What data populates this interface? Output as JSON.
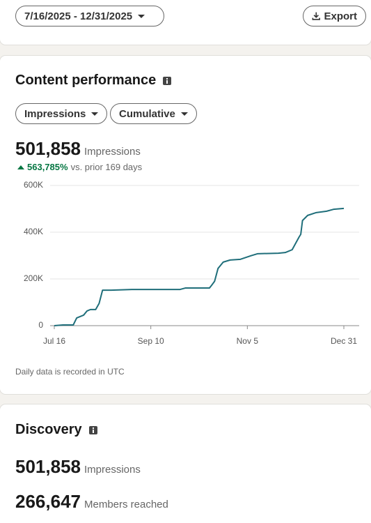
{
  "header": {
    "date_range": "7/16/2025 - 12/31/2025",
    "export": "Export"
  },
  "content_performance": {
    "title": "Content performance",
    "metric_dropdown": "Impressions",
    "mode_dropdown": "Cumulative",
    "total": "501,858",
    "total_label": "Impressions",
    "change": "563,785%",
    "change_text": "vs. prior 169 days",
    "footnote": "Daily data is recorded in UTC"
  },
  "chart_data": {
    "type": "line",
    "x": [
      0,
      5,
      11,
      13,
      17,
      19,
      21,
      24,
      26,
      28,
      33,
      45,
      73,
      76,
      90,
      91,
      93,
      95,
      98,
      102,
      108,
      114,
      118,
      130,
      134,
      138,
      142,
      143,
      144,
      147,
      152,
      158,
      162,
      168
    ],
    "series": [
      {
        "name": "Impressions",
        "color": "#1f6e7a",
        "values": [
          0,
          3000,
          3000,
          33000,
          45000,
          63000,
          69000,
          69000,
          95000,
          152000,
          152000,
          155000,
          155000,
          161000,
          161000,
          170000,
          190000,
          245000,
          272000,
          281000,
          284000,
          299000,
          308000,
          310000,
          313000,
          325000,
          379000,
          391000,
          450000,
          472000,
          484000,
          490000,
          498000,
          501858
        ]
      }
    ],
    "xlim": [
      0,
      168
    ],
    "xticks": [
      {
        "value": 0,
        "label": "Jul 16"
      },
      {
        "value": 56,
        "label": "Sep 10"
      },
      {
        "value": 112,
        "label": "Nov 5"
      },
      {
        "value": 168,
        "label": "Dec 31"
      }
    ],
    "ylim": [
      0,
      600000
    ],
    "yticks": [
      0,
      {
        "value": 200000,
        "label": "200K"
      },
      {
        "value": 400000,
        "label": "400K"
      },
      {
        "value": 600000,
        "label": "600K"
      }
    ],
    "grid": true
  },
  "discovery": {
    "title": "Discovery",
    "metrics": [
      {
        "value": "501,858",
        "label": "Impressions"
      },
      {
        "value": "266,647",
        "label": "Members reached"
      }
    ]
  }
}
